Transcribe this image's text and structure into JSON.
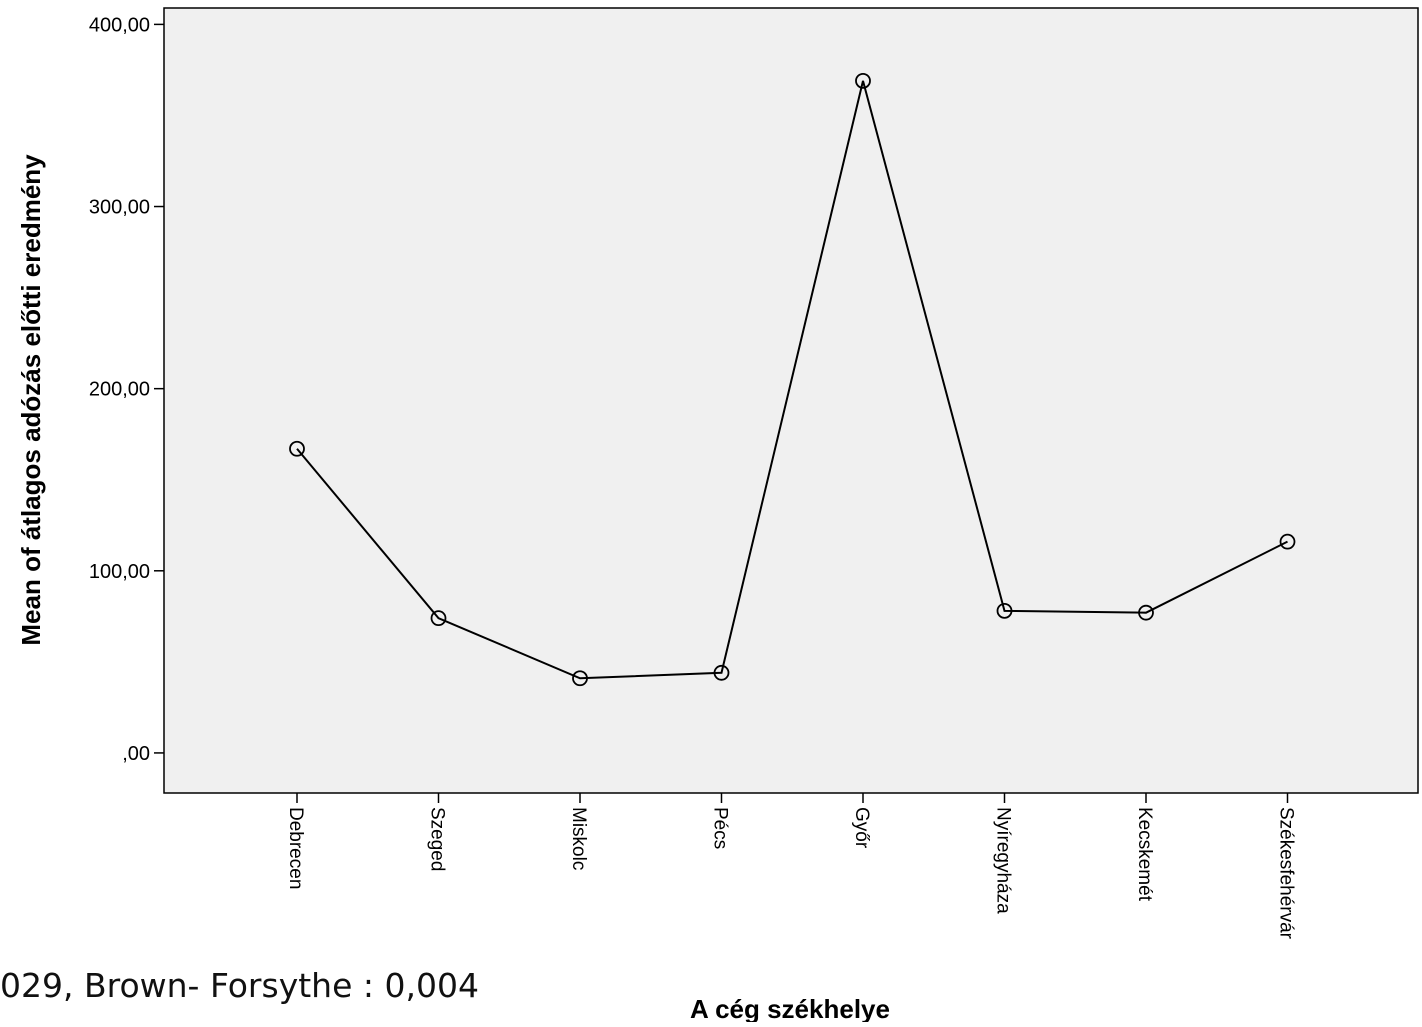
{
  "chart_data": {
    "type": "line",
    "title": "",
    "xlabel": "A cég székhelye",
    "ylabel": "Mean of átlagos adózás előtti eredmény",
    "categories": [
      "Debrecen",
      "Szeged",
      "Miskolc",
      "Pécs",
      "Győr",
      "Nyíregyháza",
      "Kecskemét",
      "Székesfehérvár"
    ],
    "values": [
      167,
      74,
      41,
      44,
      369,
      78,
      77,
      116
    ],
    "ylim": [
      -22,
      409
    ],
    "yticks": [
      0,
      100,
      200,
      300,
      400
    ],
    "ytick_labels": [
      ",00",
      "100,00",
      "200,00",
      "300,00",
      "400,00"
    ],
    "grid": false,
    "marker": "open-circle",
    "colors": {
      "line": "#000000",
      "plot_background": "#f0f0f0",
      "axis": "#000000"
    }
  },
  "footnote": "029, Brown- Forsythe : 0,004"
}
